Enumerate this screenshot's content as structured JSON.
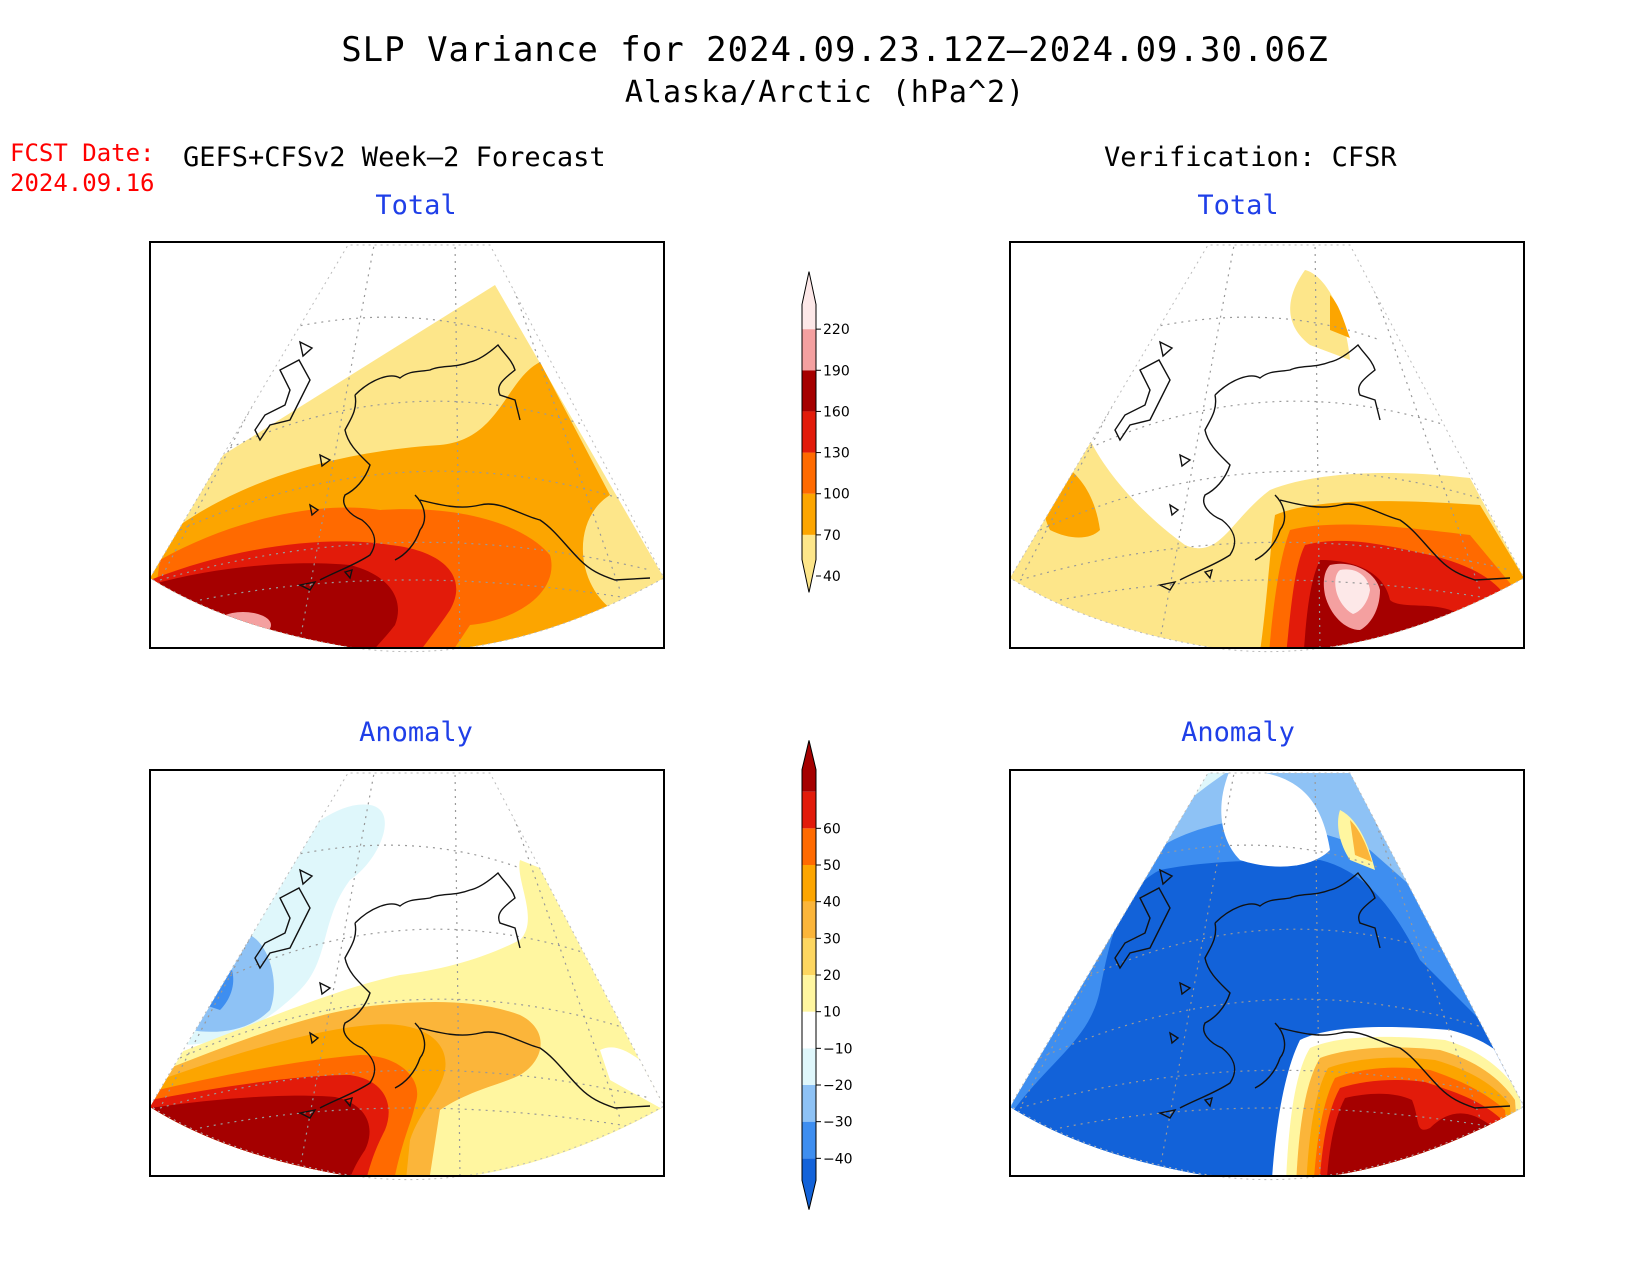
{
  "header": {
    "title": "SLP Variance for 2024.09.23.12Z–2024.09.30.06Z",
    "subtitle": "Alaska/Arctic (hPa^2)",
    "fcst_date_label": "FCST Date:",
    "fcst_date_value": "2024.09.16",
    "left_column_title": "GEFS+CFSv2 Week–2 Forecast",
    "right_column_title": "Verification: CFSR"
  },
  "panels": {
    "forecast_total": {
      "title": "Total"
    },
    "verification_total": {
      "title": "Total"
    },
    "forecast_anomaly": {
      "title": "Anomaly"
    },
    "verification_anomaly": {
      "title": "Anomaly"
    }
  },
  "colorbars": {
    "total": {
      "ticks": [
        "40",
        "70",
        "100",
        "130",
        "160",
        "190",
        "220"
      ],
      "colors": [
        "#fde68a",
        "#fca500",
        "#ff6a00",
        "#e21b0a",
        "#a50000",
        "#f4a0a0",
        "#fde8e8"
      ]
    },
    "anomaly": {
      "ticks": [
        "−40",
        "−30",
        "−20",
        "−10",
        "10",
        "20",
        "30",
        "40",
        "50",
        "60"
      ],
      "colors": [
        "#1262d9",
        "#3e8ef0",
        "#8ec2f5",
        "#dff7fb",
        "#ffffff",
        "#fff6a0",
        "#fdd660",
        "#fbb53a",
        "#fca500",
        "#ff6a00",
        "#e21b0a",
        "#a50000"
      ]
    }
  },
  "colors": {
    "title_text": "#000000",
    "panel_title": "#1f3fe8",
    "fcst_text": "#ff0000"
  }
}
